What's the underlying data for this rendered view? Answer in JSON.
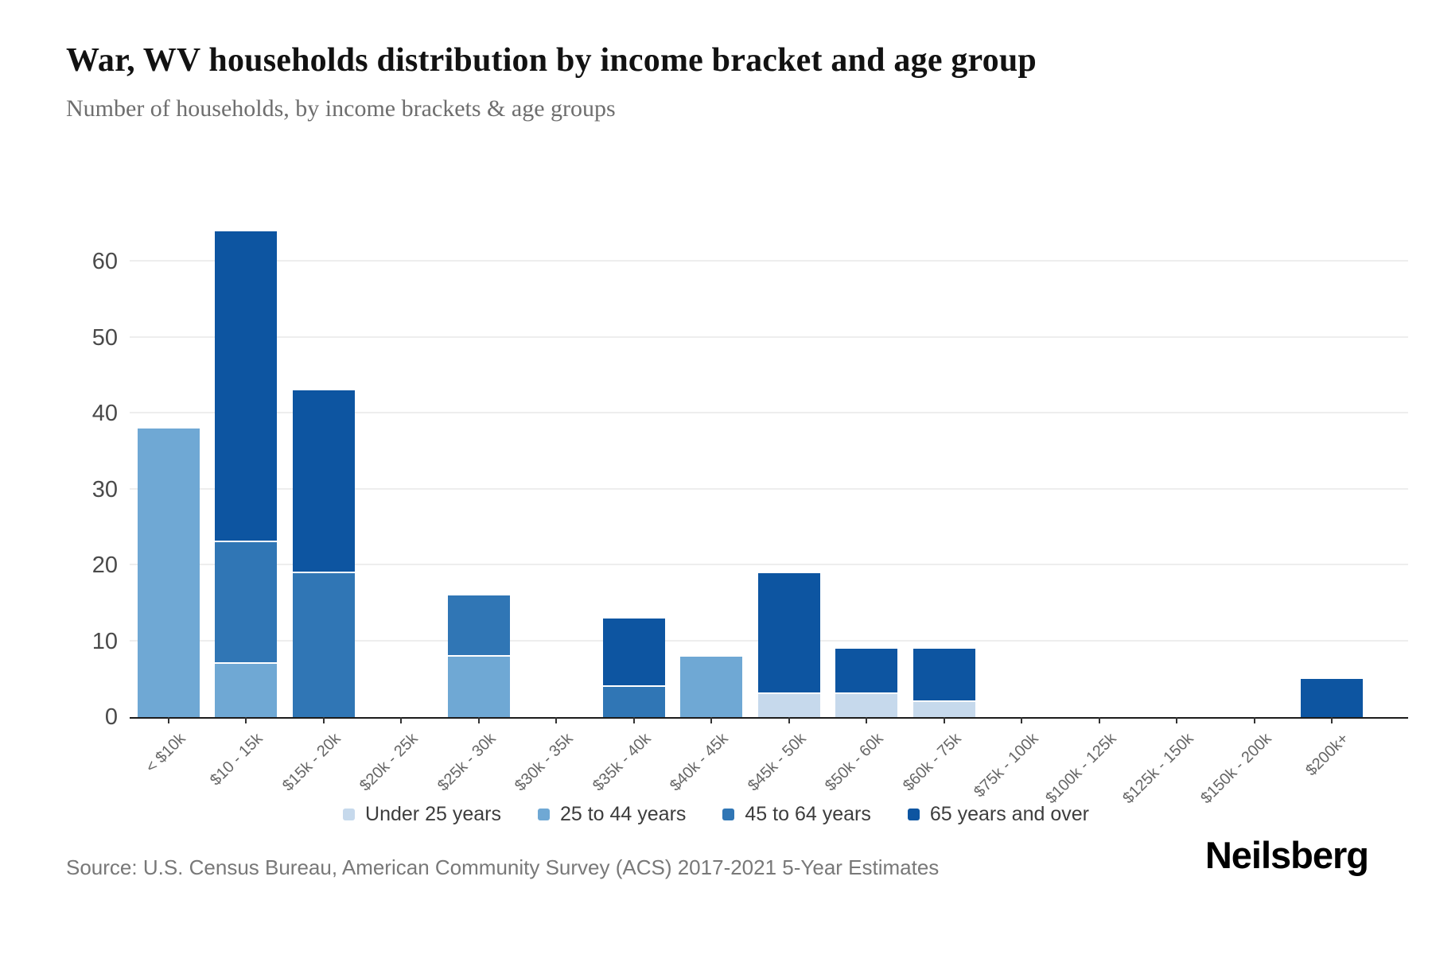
{
  "page": {
    "title": "War, WV households distribution by income bracket and age group",
    "subtitle": "Number of households, by income brackets & age groups",
    "source": "Source: U.S. Census Bureau, American Community Survey (ACS) 2017-2021 5-Year Estimates",
    "brand": "Neilsberg"
  },
  "chart_data": {
    "type": "bar",
    "stacked": true,
    "title": "War, WV households distribution by income bracket and age group",
    "subtitle": "Number of households, by income brackets & age groups",
    "xlabel": "",
    "ylabel": "",
    "grid": true,
    "legend_position": "bottom",
    "ylim": [
      0,
      69
    ],
    "yticks": [
      0,
      10,
      20,
      30,
      40,
      50,
      60
    ],
    "categories": [
      "< $10k",
      "$10 - 15k",
      "$15k - 20k",
      "$20k - 25k",
      "$25k - 30k",
      "$30k - 35k",
      "$35k - 40k",
      "$40k - 45k",
      "$45k - 50k",
      "$50k - 60k",
      "$60k - 75k",
      "$75k - 100k",
      "$100k - 125k",
      "$125k - 150k",
      "$150k - 200k",
      "$200k+"
    ],
    "series": [
      {
        "name": "Under 25 years",
        "color": "#c6d9ec",
        "values": [
          0,
          0,
          0,
          0,
          0,
          0,
          0,
          0,
          3,
          3,
          2,
          0,
          0,
          0,
          0,
          0
        ]
      },
      {
        "name": "25 to 44 years",
        "color": "#6fa8d4",
        "values": [
          38,
          7,
          0,
          0,
          8,
          0,
          0,
          8,
          0,
          0,
          0,
          0,
          0,
          0,
          0,
          0
        ]
      },
      {
        "name": "45 to 64 years",
        "color": "#3076b5",
        "values": [
          0,
          16,
          19,
          0,
          8,
          0,
          4,
          0,
          0,
          0,
          0,
          0,
          0,
          0,
          0,
          0
        ]
      },
      {
        "name": "65 years and over",
        "color": "#0d55a1",
        "values": [
          0,
          41,
          24,
          0,
          0,
          0,
          9,
          0,
          16,
          6,
          7,
          0,
          0,
          0,
          0,
          5
        ]
      }
    ],
    "totals": [
      38,
      64,
      43,
      0,
      16,
      0,
      13,
      8,
      19,
      9,
      9,
      0,
      0,
      0,
      0,
      5
    ]
  }
}
